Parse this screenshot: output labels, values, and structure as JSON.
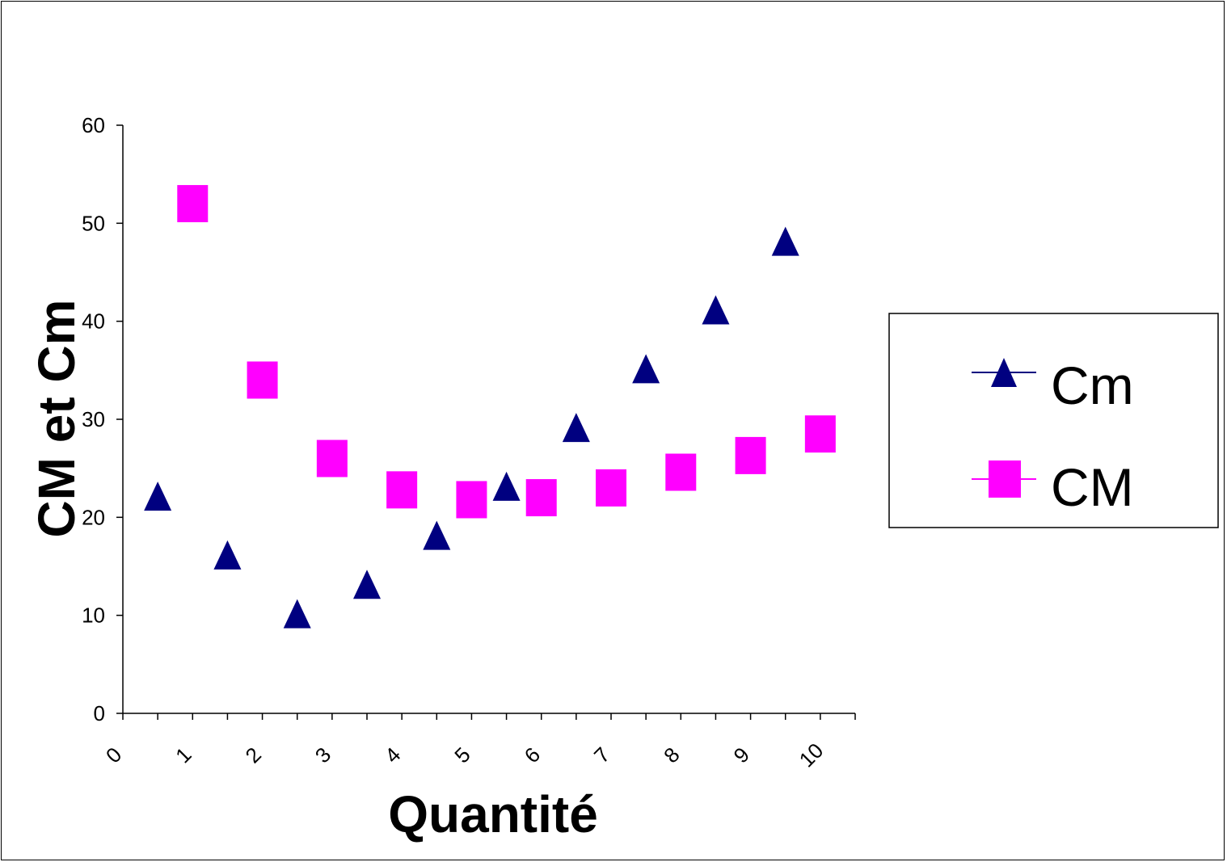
{
  "chart_data": {
    "type": "scatter",
    "title": "",
    "xlabel": "Quantité",
    "ylabel": "CM et Cm",
    "xlim": [
      0,
      10.5
    ],
    "ylim": [
      0,
      60
    ],
    "x_ticks": [
      "0",
      "1",
      "2",
      "3",
      "4",
      "5",
      "6",
      "7",
      "8",
      "9",
      "10"
    ],
    "y_ticks": [
      "0",
      "10",
      "20",
      "30",
      "40",
      "50",
      "60"
    ],
    "grid": false,
    "legend_position": "right",
    "series": [
      {
        "name": "Cm",
        "marker": "triangle",
        "color": "#000080",
        "x": [
          0.5,
          1.5,
          2.5,
          3.5,
          4.5,
          5.5,
          6.5,
          7.5,
          8.5,
          9.5
        ],
        "y": [
          22,
          16,
          10,
          13,
          18,
          23,
          29,
          35,
          41,
          48
        ]
      },
      {
        "name": "CM",
        "marker": "square",
        "color": "#FF00FF",
        "x": [
          1,
          2,
          3,
          4,
          5,
          6,
          7,
          8,
          9,
          10
        ],
        "y": [
          52,
          34,
          26,
          22.8,
          21.8,
          22,
          23,
          24.6,
          26.3,
          28.5
        ]
      }
    ]
  }
}
